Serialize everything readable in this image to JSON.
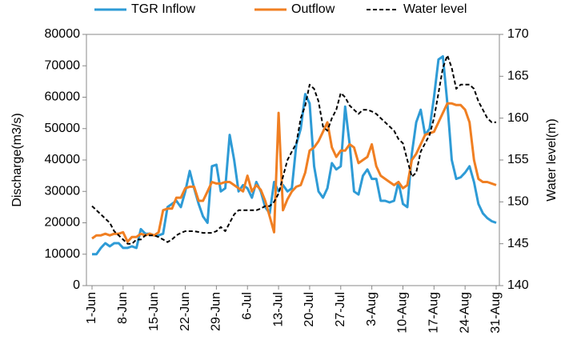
{
  "chart_data": {
    "type": "line",
    "categories": [
      "1-Jun",
      null,
      null,
      null,
      null,
      null,
      null,
      "8-Jun",
      null,
      null,
      null,
      null,
      null,
      null,
      "15-Jun",
      null,
      null,
      null,
      null,
      null,
      null,
      "22-Jun",
      null,
      null,
      null,
      null,
      null,
      null,
      "29-Jun",
      null,
      null,
      null,
      null,
      null,
      null,
      "6-Jul",
      null,
      null,
      null,
      null,
      null,
      null,
      "13-Jul",
      null,
      null,
      null,
      null,
      null,
      null,
      "20-Jul",
      null,
      null,
      null,
      null,
      null,
      null,
      "27-Jul",
      null,
      null,
      null,
      null,
      null,
      null,
      "3-Aug",
      null,
      null,
      null,
      null,
      null,
      null,
      "10-Aug",
      null,
      null,
      null,
      null,
      null,
      null,
      "17-Aug",
      null,
      null,
      null,
      null,
      null,
      null,
      "24-Aug",
      null,
      null,
      null,
      null,
      null,
      null,
      "31-Aug"
    ],
    "series": [
      {
        "name": "TGR Inflow",
        "color": "#2e9bd6",
        "axis": "y",
        "dash": false,
        "values": [
          10000,
          10000,
          12000,
          13500,
          12500,
          13500,
          13500,
          12000,
          12000,
          12500,
          12000,
          18000,
          16500,
          16500,
          16000,
          16000,
          16500,
          25000,
          26000,
          27000,
          25000,
          30000,
          36500,
          31000,
          26000,
          22000,
          20000,
          38000,
          38500,
          30000,
          31000,
          48000,
          40000,
          30000,
          32000,
          31000,
          28000,
          33000,
          30000,
          25000,
          23000,
          33000,
          30000,
          32000,
          30000,
          31000,
          45000,
          50000,
          61000,
          58000,
          38000,
          30000,
          28000,
          31000,
          39000,
          37000,
          38000,
          57000,
          45000,
          30000,
          29000,
          35000,
          37000,
          34000,
          34000,
          27000,
          27000,
          26500,
          27000,
          33000,
          26000,
          25000,
          42000,
          52000,
          56000,
          48000,
          50000,
          60000,
          72000,
          73000,
          58000,
          40000,
          34000,
          34500,
          36000,
          38000,
          33000,
          26000,
          23000,
          21500,
          20500,
          20000
        ]
      },
      {
        "name": "Outflow",
        "color": "#f07f22",
        "axis": "y",
        "dash": false,
        "values": [
          15000,
          16000,
          16000,
          16500,
          16000,
          16500,
          16500,
          17000,
          14000,
          15500,
          15500,
          16500,
          16000,
          16500,
          16000,
          17000,
          24000,
          24500,
          24500,
          28000,
          28000,
          31000,
          31500,
          31500,
          27000,
          27000,
          30000,
          33000,
          32500,
          32500,
          33000,
          33000,
          32000,
          31000,
          30000,
          35000,
          30000,
          32000,
          30500,
          27000,
          22000,
          17000,
          55000,
          24000,
          27500,
          30000,
          31500,
          32000,
          36000,
          43000,
          44000,
          46000,
          49000,
          52000,
          44000,
          41000,
          43000,
          43000,
          45000,
          44000,
          39000,
          40000,
          41000,
          45000,
          38000,
          35000,
          34000,
          33000,
          32000,
          33000,
          31000,
          32000,
          40000,
          42000,
          45000,
          48000,
          48500,
          49000,
          52000,
          55000,
          58000,
          58000,
          57500,
          57500,
          56000,
          52000,
          40000,
          34000,
          33000,
          33000,
          32500,
          32000
        ]
      },
      {
        "name": "Water level",
        "color": "#000000",
        "axis": "y2",
        "dash": true,
        "values": [
          149.5,
          149,
          148.5,
          148,
          147.5,
          146.5,
          146,
          145.5,
          145,
          145,
          145.5,
          145.5,
          146,
          146,
          146,
          145.8,
          145.5,
          145.2,
          145.5,
          146,
          146.3,
          146.5,
          146.5,
          146.5,
          146.4,
          146.3,
          146.3,
          146.3,
          146.5,
          147,
          146.5,
          147.5,
          148.5,
          149,
          149,
          149,
          149,
          149,
          149.2,
          149.5,
          149.5,
          150,
          151,
          153,
          155,
          156,
          157,
          160,
          161.5,
          164,
          163.5,
          162,
          159,
          158.5,
          160,
          161,
          163,
          162.5,
          161.5,
          161,
          160.5,
          161,
          161,
          160.8,
          160.5,
          160,
          159.5,
          159,
          158.5,
          157.5,
          157,
          155,
          153,
          153.5,
          156,
          157,
          158,
          160,
          163,
          166,
          167.5,
          166,
          163.5,
          164,
          164,
          164,
          163.5,
          162,
          161,
          160,
          159.5,
          159.5
        ]
      }
    ],
    "ylabel": "Discharge(m3/s)",
    "y2label": "Water level(m)",
    "ylim": [
      0,
      80000
    ],
    "yticks": [
      0,
      10000,
      20000,
      30000,
      40000,
      50000,
      60000,
      70000,
      80000
    ],
    "y2lim": [
      140,
      170
    ],
    "y2ticks": [
      140,
      145,
      150,
      155,
      160,
      165,
      170
    ],
    "legend": "top",
    "grid": false
  }
}
